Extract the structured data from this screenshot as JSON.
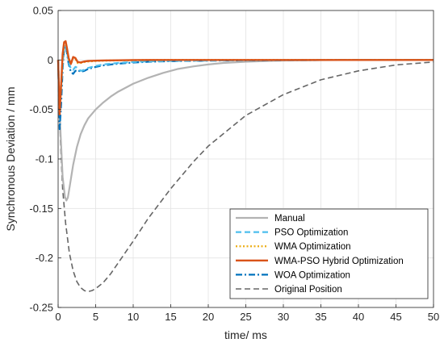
{
  "chart_data": {
    "type": "line",
    "xlabel": "time/ ms",
    "ylabel": "Synchronous Deviation  / mm",
    "xlim": [
      0,
      50
    ],
    "ylim": [
      -0.25,
      0.05
    ],
    "x_ticks": [
      "0",
      "5",
      "10",
      "15",
      "20",
      "25",
      "30",
      "35",
      "40",
      "45",
      "50"
    ],
    "y_ticks": [
      "0.05",
      "0",
      "-0.05",
      "-0.1",
      "-0.15",
      "-0.2",
      "-0.25"
    ],
    "x_tick_values": [
      0,
      5,
      10,
      15,
      20,
      25,
      30,
      35,
      40,
      45,
      50
    ],
    "y_tick_values": [
      0.05,
      0,
      -0.05,
      -0.1,
      -0.15,
      -0.2,
      -0.25
    ],
    "grid": true,
    "legend_position": "bottom-right",
    "series": [
      {
        "name": "Manual",
        "color": "#b3b3b3",
        "dash": "solid",
        "x": [
          0,
          0.3,
          0.6,
          0.9,
          1.1,
          1.3,
          1.6,
          2,
          2.5,
          3,
          3.5,
          4,
          5,
          6,
          7,
          8,
          10,
          12,
          14,
          16,
          18,
          20,
          22,
          25,
          28,
          30,
          35,
          40,
          45,
          50
        ],
        "y": [
          0,
          -0.07,
          -0.118,
          -0.138,
          -0.142,
          -0.139,
          -0.125,
          -0.106,
          -0.088,
          -0.075,
          -0.066,
          -0.059,
          -0.05,
          -0.043,
          -0.037,
          -0.032,
          -0.024,
          -0.018,
          -0.013,
          -0.009,
          -0.0065,
          -0.0045,
          -0.003,
          -0.0018,
          -0.001,
          -0.0006,
          -0.0002,
          0,
          0,
          0
        ]
      },
      {
        "name": "PSO Optimization",
        "color": "#4dbeee",
        "dash": "dashed",
        "x": [
          0,
          0.2,
          0.4,
          0.6,
          0.8,
          1.0,
          1.2,
          1.4,
          1.7,
          2.0,
          2.3,
          2.6,
          3.0,
          3.5,
          4,
          5,
          6,
          8,
          10,
          12,
          15,
          20,
          25,
          30,
          40,
          50
        ],
        "y": [
          0,
          -0.045,
          -0.03,
          -0.005,
          0.013,
          0.016,
          0.008,
          -0.002,
          -0.009,
          -0.01,
          -0.007,
          -0.008,
          -0.011,
          -0.01,
          -0.008,
          -0.006,
          -0.0045,
          -0.003,
          -0.002,
          -0.0014,
          -0.001,
          -0.0006,
          -0.0003,
          -0.0001,
          0,
          0
        ]
      },
      {
        "name": "WMA Optimization",
        "color": "#edb120",
        "dash": "dotted",
        "x": [
          0,
          0.2,
          0.4,
          0.6,
          0.8,
          1.0,
          1.2,
          1.4,
          1.7,
          2.0,
          2.3,
          2.6,
          3.0,
          3.5,
          4,
          5,
          6,
          8,
          10,
          12,
          15,
          20,
          30,
          50
        ],
        "y": [
          0,
          -0.05,
          -0.028,
          0.002,
          0.016,
          0.018,
          0.01,
          0.001,
          -0.004,
          0.002,
          0.001,
          -0.003,
          -0.003,
          -0.002,
          -0.0015,
          -0.001,
          -0.0007,
          -0.0004,
          -0.0002,
          -0.0001,
          0,
          0,
          0,
          0
        ]
      },
      {
        "name": "WMA-PSO Hybrid Optimization",
        "color": "#d95319",
        "dash": "solid",
        "x": [
          0,
          0.2,
          0.4,
          0.6,
          0.8,
          1.0,
          1.2,
          1.4,
          1.7,
          2.0,
          2.3,
          2.6,
          3.0,
          3.5,
          4,
          5,
          6,
          8,
          10,
          12,
          15,
          20,
          30,
          50
        ],
        "y": [
          0,
          -0.055,
          -0.025,
          0.006,
          0.018,
          0.019,
          0.011,
          0.002,
          -0.004,
          0.003,
          0.002,
          -0.002,
          -0.0025,
          -0.0015,
          -0.001,
          -0.0007,
          -0.0005,
          -0.0003,
          -0.0001,
          0,
          0,
          0,
          0,
          0
        ]
      },
      {
        "name": "WOA Optimization",
        "color": "#0072bd",
        "dash": "dashdot",
        "x": [
          0,
          0.2,
          0.4,
          0.6,
          0.8,
          1.0,
          1.2,
          1.4,
          1.7,
          2.0,
          2.3,
          2.6,
          3.0,
          3.5,
          4,
          5,
          6,
          8,
          10,
          12,
          15,
          20,
          25,
          30,
          40,
          50
        ],
        "y": [
          0,
          -0.07,
          -0.045,
          -0.01,
          0.012,
          0.014,
          0.006,
          -0.004,
          -0.012,
          -0.014,
          -0.011,
          -0.01,
          -0.012,
          -0.011,
          -0.009,
          -0.007,
          -0.0055,
          -0.0037,
          -0.0026,
          -0.0018,
          -0.0012,
          -0.0007,
          -0.0004,
          -0.0002,
          0,
          0
        ]
      },
      {
        "name": "Original Position",
        "color": "#666666",
        "dash": "dashed",
        "x": [
          0,
          0.3,
          0.6,
          1,
          1.5,
          2,
          2.5,
          3,
          3.5,
          4,
          4.5,
          5,
          6,
          7,
          8,
          10,
          12,
          15,
          18,
          20,
          25,
          30,
          35,
          40,
          45,
          50
        ],
        "y": [
          0,
          -0.08,
          -0.13,
          -0.165,
          -0.195,
          -0.213,
          -0.224,
          -0.23,
          -0.233,
          -0.234,
          -0.233,
          -0.231,
          -0.225,
          -0.216,
          -0.205,
          -0.183,
          -0.16,
          -0.13,
          -0.103,
          -0.087,
          -0.056,
          -0.035,
          -0.02,
          -0.011,
          -0.005,
          -0.002
        ]
      }
    ]
  }
}
